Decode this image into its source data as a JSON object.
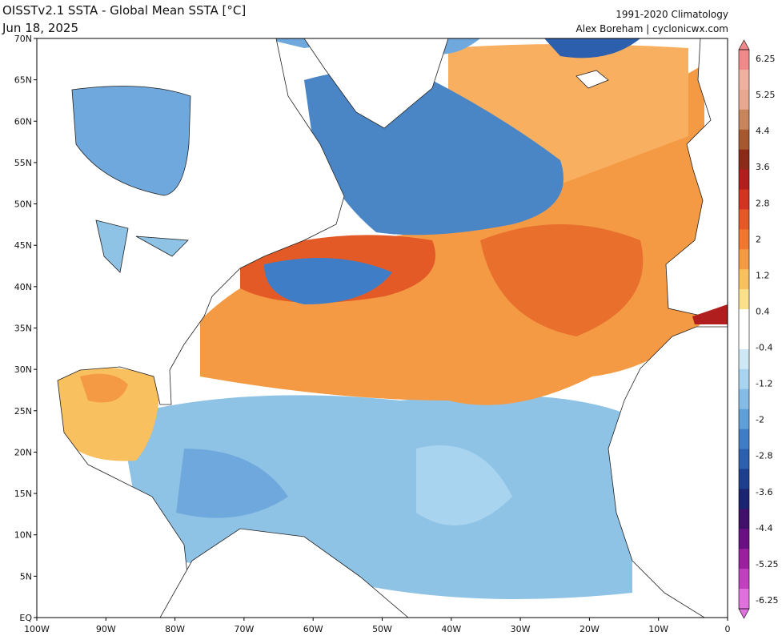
{
  "header": {
    "title": "OISSTv2.1 SSTA - Global Mean SSTA [°C]",
    "date": "Jun 18, 2025",
    "climatology": "1991-2020 Climatology",
    "credit": "Alex Boreham | cyclonicwx.com"
  },
  "map": {
    "lat_labels": [
      "70N",
      "65N",
      "60N",
      "55N",
      "50N",
      "45N",
      "40N",
      "35N",
      "30N",
      "25N",
      "20N",
      "15N",
      "10N",
      "5N",
      "EQ"
    ],
    "lon_labels": [
      "100W",
      "90W",
      "80W",
      "70W",
      "60W",
      "50W",
      "40W",
      "30W",
      "20W",
      "10W",
      "0"
    ]
  },
  "colorbar": {
    "labels": [
      "6.25",
      "5.25",
      "4.4",
      "3.6",
      "2.8",
      "2",
      "1.2",
      "0.4",
      "-0.4",
      "-1.2",
      "-2",
      "-2.8",
      "-3.6",
      "-4.4",
      "-5.25",
      "-6.25"
    ],
    "colors": [
      "#f08a8a",
      "#f0b0a0",
      "#e8a890",
      "#c8855c",
      "#a8582e",
      "#8c2a1a",
      "#b01e1e",
      "#d23422",
      "#e45a26",
      "#f0782e",
      "#f49a44",
      "#f8c05e",
      "#fbe08c",
      "#ffffff",
      "#ffffff",
      "#cfe8f6",
      "#a8d4ef",
      "#84bce6",
      "#5e9fd8",
      "#3f7ec6",
      "#2c5fae",
      "#1e3f8e",
      "#1a2470",
      "#40106a",
      "#6a1084",
      "#9a20a0",
      "#c040c0",
      "#e070dc"
    ]
  }
}
